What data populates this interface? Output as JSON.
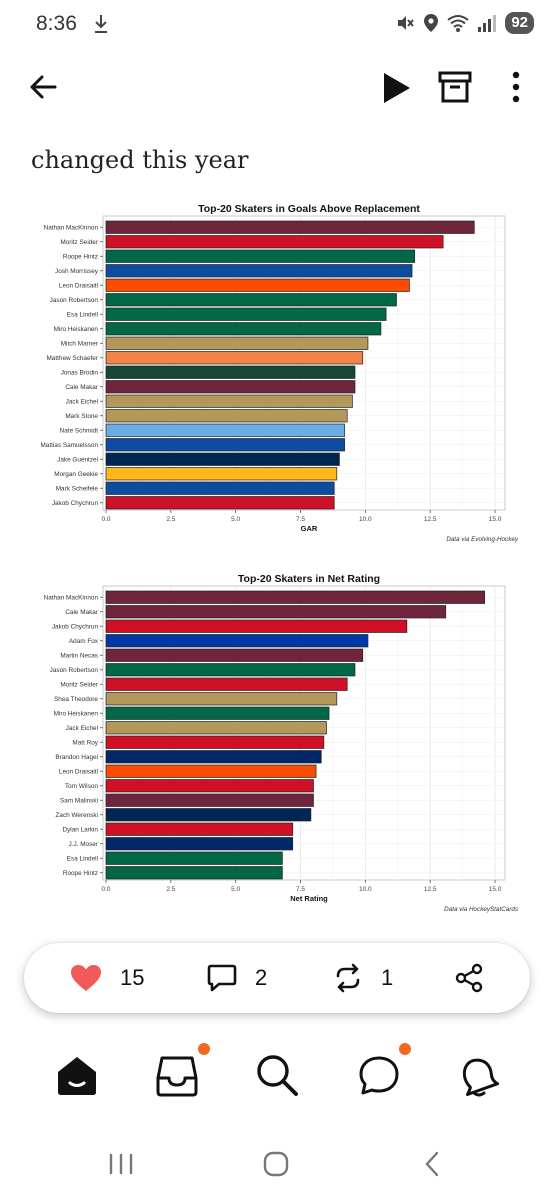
{
  "status": {
    "time": "8:36",
    "battery": "92"
  },
  "post": {
    "heading": "changed this year"
  },
  "charts": [
    {
      "type": "bar",
      "title": "Top-20 Skaters in Goals Above Replacement",
      "xlabel": "GAR",
      "caption": "Data via Evolving-Hockey",
      "xticks": [
        "0.0",
        "2.5",
        "5.0",
        "7.5",
        "10.0",
        "12.5",
        "15.0"
      ],
      "xlim": [
        0,
        15.5
      ],
      "categories": [
        "Nathan MacKinnon",
        "Moritz Seider",
        "Roope Hintz",
        "Josh Morrissey",
        "Leon Draisaitl",
        "Jason Robertson",
        "Esa Lindell",
        "Miro Heiskanen",
        "Mitch Marner",
        "Matthew Schaefer",
        "Jonas Brodin",
        "Cale Makar",
        "Jack Eichel",
        "Mark Stone",
        "Nate Schmidt",
        "Mattias Samuelsson",
        "Jake Guentzel",
        "Morgan Geekie",
        "Mark Scheifele",
        "Jakob Chychrun"
      ],
      "values": [
        14.2,
        13.0,
        11.9,
        11.8,
        11.7,
        11.2,
        10.8,
        10.6,
        10.1,
        9.9,
        9.6,
        9.6,
        9.5,
        9.3,
        9.2,
        9.2,
        9.0,
        8.9,
        8.8,
        8.8
      ],
      "colors": [
        "#6f2639",
        "#ce1126",
        "#006847",
        "#0d4da1",
        "#fc4c02",
        "#006847",
        "#006847",
        "#006847",
        "#b4975a",
        "#f08547",
        "#154734",
        "#6f263d",
        "#b4975a",
        "#b4975a",
        "#6cace4",
        "#0d4da1",
        "#002654",
        "#ffb81c",
        "#0d4da1",
        "#ce1126"
      ]
    },
    {
      "type": "bar",
      "title": "Top-20 Skaters in Net Rating",
      "xlabel": "Net Rating",
      "caption": "Data via HockeyStatCards",
      "xticks": [
        "0.0",
        "2.5",
        "5.0",
        "7.5",
        "10.0",
        "12.5",
        "15.0"
      ],
      "xlim": [
        0,
        15.5
      ],
      "categories": [
        "Nathan MacKinnon",
        "Cale Makar",
        "Jakob Chychrun",
        "Adam Fox",
        "Martin Necas",
        "Jason Robertson",
        "Moritz Seider",
        "Shea Theodore",
        "Miro Heiskanen",
        "Jack Eichel",
        "Matt Roy",
        "Brandon Hagel",
        "Leon Draisaitl",
        "Tom Wilson",
        "Sam Malinski",
        "Zach Werenski",
        "Dylan Larkin",
        "J.J. Moser",
        "Esa Lindell",
        "Roope Hintz"
      ],
      "values": [
        14.6,
        13.1,
        11.6,
        10.1,
        9.9,
        9.6,
        9.3,
        8.9,
        8.6,
        8.5,
        8.4,
        8.3,
        8.1,
        8.0,
        8.0,
        7.9,
        7.2,
        7.2,
        6.8,
        6.8
      ],
      "colors": [
        "#6f2639",
        "#6f263d",
        "#ce1126",
        "#0038a8",
        "#6f263d",
        "#006847",
        "#ce1126",
        "#b4975a",
        "#006847",
        "#b4975a",
        "#ce1126",
        "#002868",
        "#fc4c02",
        "#ce1126",
        "#6f263d",
        "#002654",
        "#ce1126",
        "#002868",
        "#006847",
        "#006847"
      ]
    }
  ],
  "actions": {
    "likes": "15",
    "comments": "2",
    "restacks": "1"
  },
  "colors": {
    "like": "#f05a5a",
    "badge": "#f26a22"
  }
}
